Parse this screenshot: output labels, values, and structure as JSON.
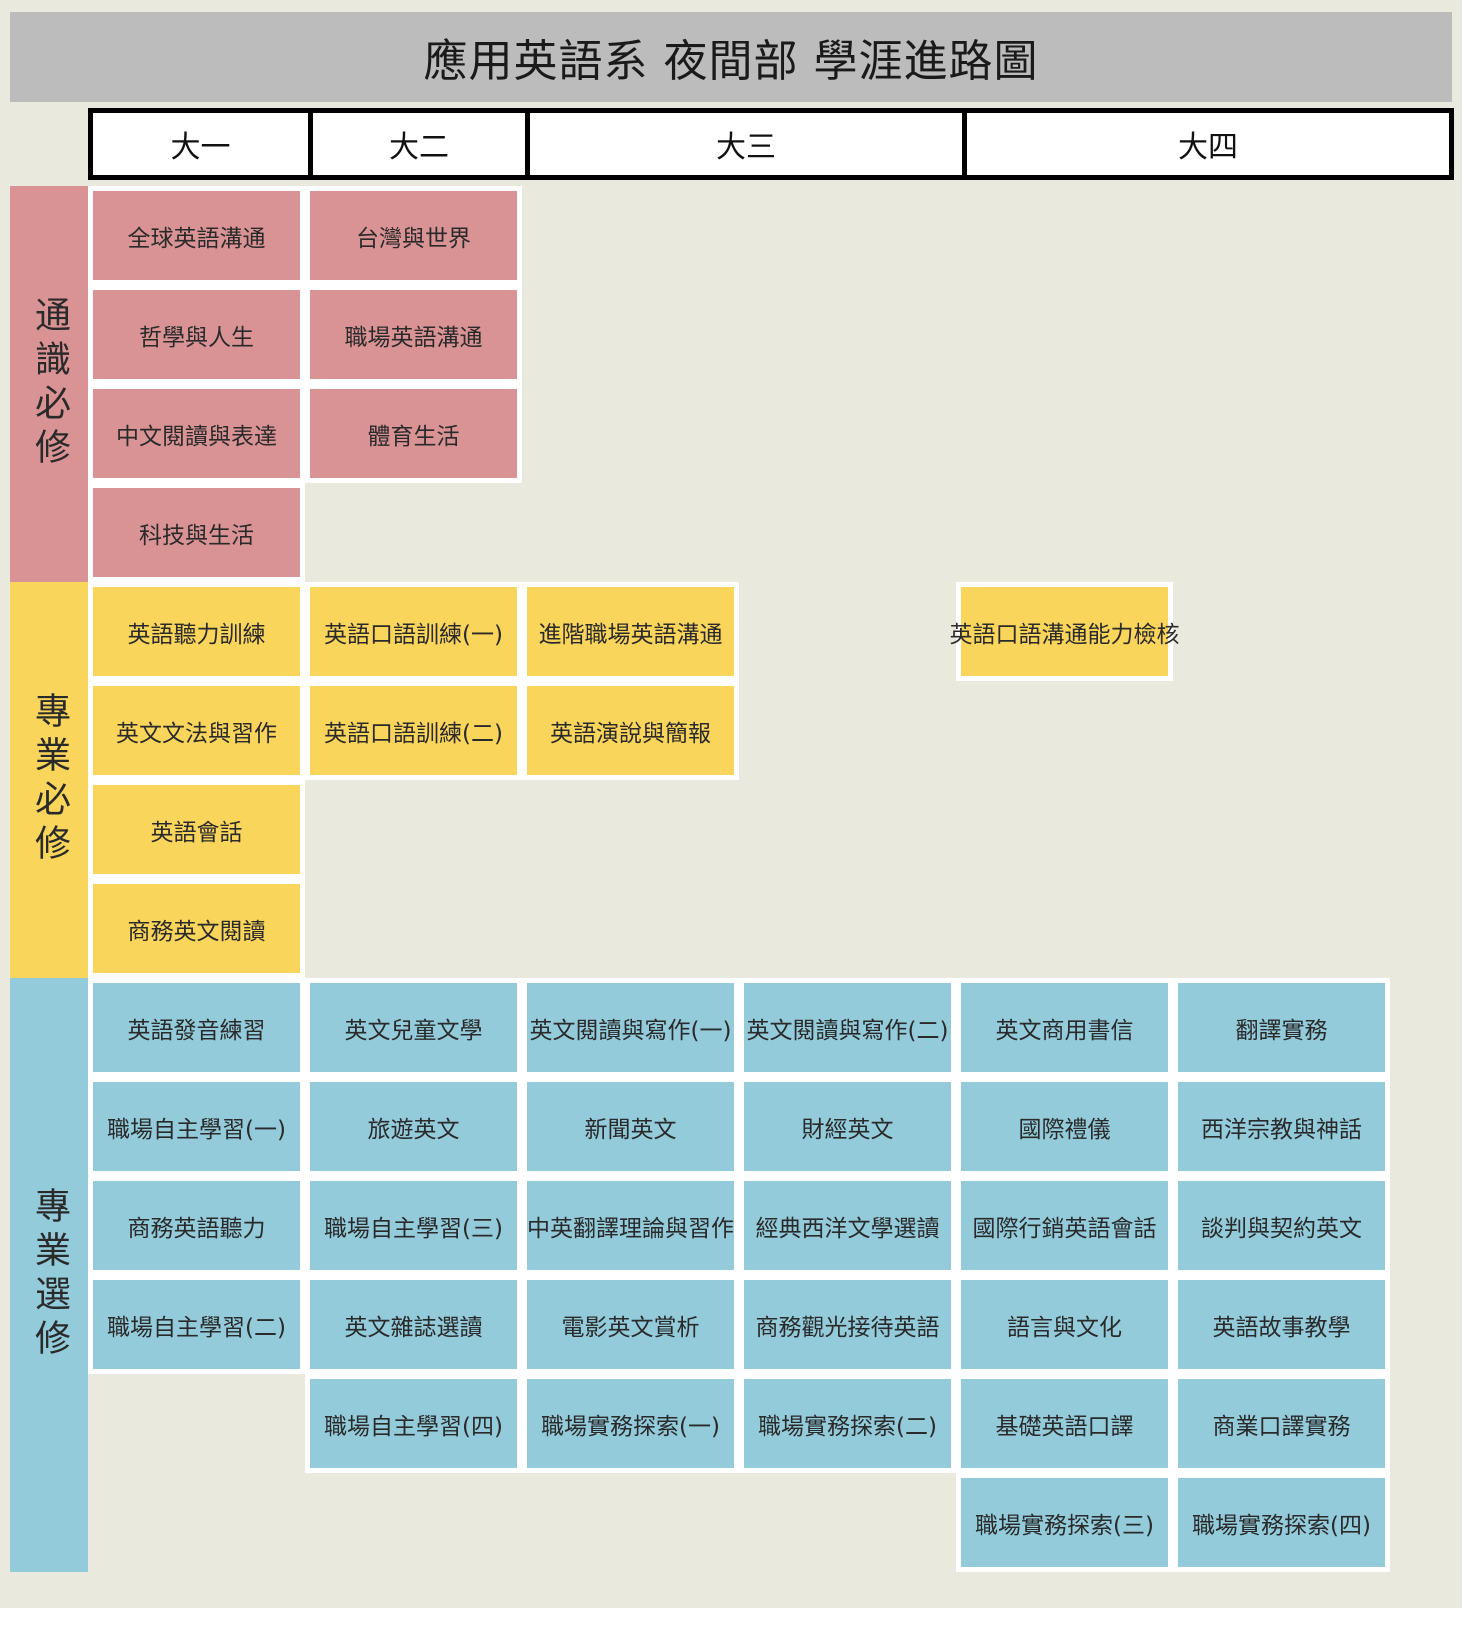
{
  "title": "應用英語系 夜間部 學涯進路圖",
  "years": [
    "大一",
    "大二",
    "大三",
    "大四"
  ],
  "colors": {
    "general": "#d99394",
    "required": "#f9d55b",
    "elective": "#93cbdb",
    "background": "#eae9dd",
    "title_bar": "#bcbcbc"
  },
  "categories": [
    {
      "label": "通識必修",
      "type": "general",
      "courses": [
        {
          "name": "全球英語溝通",
          "col": 0,
          "row": 0
        },
        {
          "name": "台灣與世界",
          "col": 1,
          "row": 0
        },
        {
          "name": "哲學與人生",
          "col": 0,
          "row": 1
        },
        {
          "name": "職場英語溝通",
          "col": 1,
          "row": 1
        },
        {
          "name": "中文閱讀與表達",
          "col": 0,
          "row": 2
        },
        {
          "name": "體育生活",
          "col": 1,
          "row": 2
        },
        {
          "name": "科技與生活",
          "col": 0,
          "row": 3
        }
      ]
    },
    {
      "label": "專業必修",
      "type": "required",
      "courses": [
        {
          "name": "英語聽力訓練",
          "col": 0,
          "row": 4
        },
        {
          "name": "英語口語訓練(一)",
          "col": 1,
          "row": 4
        },
        {
          "name": "進階職場英語溝通",
          "col": 2,
          "row": 4
        },
        {
          "name": "英語口語溝通能力檢核",
          "col": 4,
          "row": 4
        },
        {
          "name": "英文文法與習作",
          "col": 0,
          "row": 5
        },
        {
          "name": "英語口語訓練(二)",
          "col": 1,
          "row": 5
        },
        {
          "name": "英語演說與簡報",
          "col": 2,
          "row": 5
        },
        {
          "name": "英語會話",
          "col": 0,
          "row": 6
        },
        {
          "name": "商務英文閱讀",
          "col": 0,
          "row": 7
        }
      ]
    },
    {
      "label": "專業選修",
      "type": "elective",
      "courses": [
        {
          "name": "英語發音練習",
          "col": 0,
          "row": 8
        },
        {
          "name": "英文兒童文學",
          "col": 1,
          "row": 8
        },
        {
          "name": "英文閱讀與寫作(一)",
          "col": 2,
          "row": 8
        },
        {
          "name": "英文閱讀與寫作(二)",
          "col": 3,
          "row": 8
        },
        {
          "name": "英文商用書信",
          "col": 4,
          "row": 8
        },
        {
          "name": "翻譯實務",
          "col": 5,
          "row": 8
        },
        {
          "name": "職場自主學習(一)",
          "col": 0,
          "row": 9
        },
        {
          "name": "旅遊英文",
          "col": 1,
          "row": 9
        },
        {
          "name": "新聞英文",
          "col": 2,
          "row": 9
        },
        {
          "name": "財經英文",
          "col": 3,
          "row": 9
        },
        {
          "name": "國際禮儀",
          "col": 4,
          "row": 9
        },
        {
          "name": "西洋宗教與神話",
          "col": 5,
          "row": 9
        },
        {
          "name": "商務英語聽力",
          "col": 0,
          "row": 10
        },
        {
          "name": "職場自主學習(三)",
          "col": 1,
          "row": 10
        },
        {
          "name": "中英翻譯理論與習作",
          "col": 2,
          "row": 10
        },
        {
          "name": "經典西洋文學選讀",
          "col": 3,
          "row": 10
        },
        {
          "name": "國際行銷英語會話",
          "col": 4,
          "row": 10
        },
        {
          "name": "談判與契約英文",
          "col": 5,
          "row": 10
        },
        {
          "name": "職場自主學習(二)",
          "col": 0,
          "row": 11
        },
        {
          "name": "英文雜誌選讀",
          "col": 1,
          "row": 11
        },
        {
          "name": "電影英文賞析",
          "col": 2,
          "row": 11
        },
        {
          "name": "商務觀光接待英語",
          "col": 3,
          "row": 11
        },
        {
          "name": "語言與文化",
          "col": 4,
          "row": 11
        },
        {
          "name": "英語故事教學",
          "col": 5,
          "row": 11
        },
        {
          "name": "職場自主學習(四)",
          "col": 1,
          "row": 12
        },
        {
          "name": "職場實務探索(一)",
          "col": 2,
          "row": 12
        },
        {
          "name": "職場實務探索(二)",
          "col": 3,
          "row": 12
        },
        {
          "name": "基礎英語口譯",
          "col": 4,
          "row": 12
        },
        {
          "name": "商業口譯實務",
          "col": 5,
          "row": 12
        },
        {
          "name": "職場實務探索(三)",
          "col": 4,
          "row": 13
        },
        {
          "name": "職場實務探索(四)",
          "col": 5,
          "row": 13
        }
      ]
    }
  ]
}
